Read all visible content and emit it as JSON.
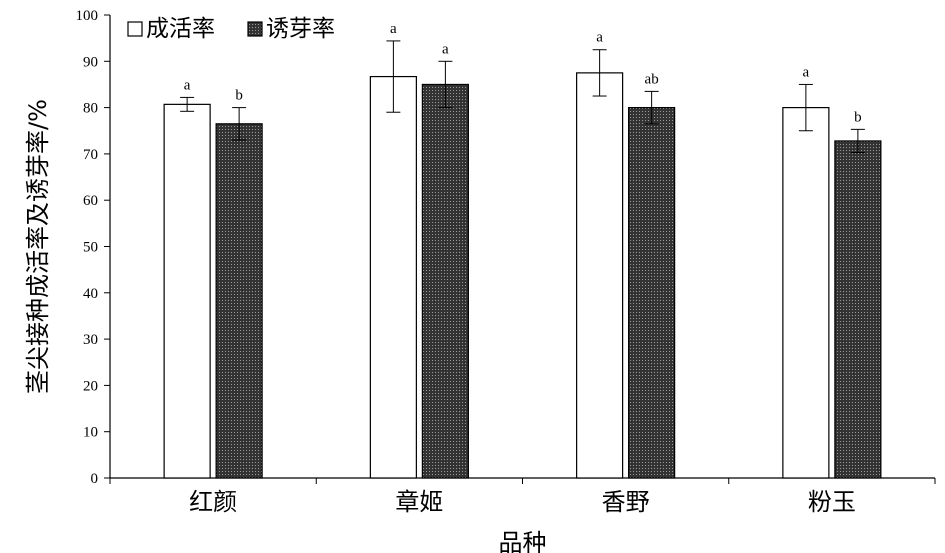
{
  "chart_data": {
    "type": "bar",
    "title": "",
    "xlabel": "品种",
    "ylabel": "茎尖接种成活率及诱芽率/%",
    "categories": [
      "红颜",
      "章姬",
      "香野",
      "粉玉"
    ],
    "ylim": [
      0,
      100
    ],
    "yticks": [
      0,
      10,
      20,
      30,
      40,
      50,
      60,
      70,
      80,
      90,
      100
    ],
    "grid": false,
    "legend": "top-left",
    "series": [
      {
        "name": "成活率",
        "fill": "#ffffff",
        "values": [
          80.7,
          86.7,
          87.5,
          80.0
        ],
        "errors": [
          1.5,
          7.7,
          5.0,
          5.0
        ],
        "labels": [
          "a",
          "a",
          "a",
          "a"
        ]
      },
      {
        "name": "诱芽率",
        "fill": "#333333",
        "values": [
          76.5,
          85.0,
          80.0,
          72.8
        ],
        "errors": [
          3.5,
          5.0,
          3.5,
          2.5
        ],
        "labels": [
          "b",
          "a",
          "ab",
          "b"
        ]
      }
    ]
  }
}
